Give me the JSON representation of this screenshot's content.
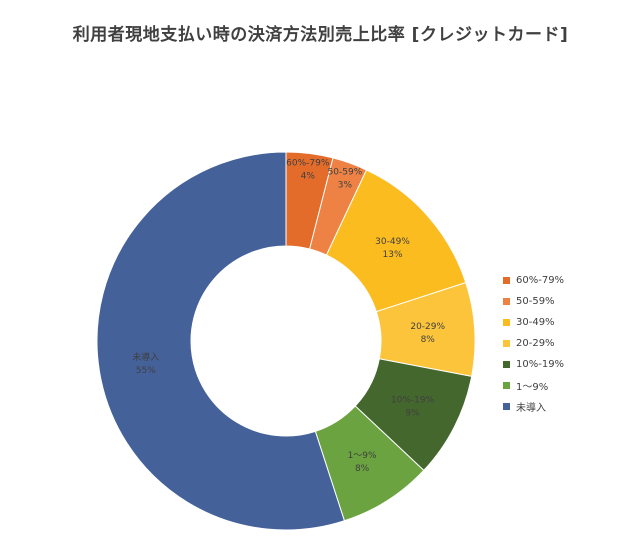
{
  "chart_data": {
    "type": "pie",
    "title": "利用者現地支払い時の決済方法別売上比率 [クレジットカード]",
    "legend_position": "right",
    "slices": [
      {
        "label": "60%-79%",
        "value": 4,
        "value_label": "4%",
        "color": "#e36c2b"
      },
      {
        "label": "50-59%",
        "value": 3,
        "value_label": "3%",
        "color": "#ed8244"
      },
      {
        "label": "30-49%",
        "value": 13,
        "value_label": "13%",
        "color": "#fbbc20"
      },
      {
        "label": "20-29%",
        "value": 8,
        "value_label": "8%",
        "color": "#fcc43b"
      },
      {
        "label": "10%-19%",
        "value": 9,
        "value_label": "9%",
        "color": "#44672e"
      },
      {
        "label": "1～9%",
        "value": 8,
        "value_label": "8%",
        "color": "#6aa33f"
      },
      {
        "label": "未導入",
        "value": 55,
        "value_label": "55%",
        "color": "#44619a"
      }
    ]
  }
}
